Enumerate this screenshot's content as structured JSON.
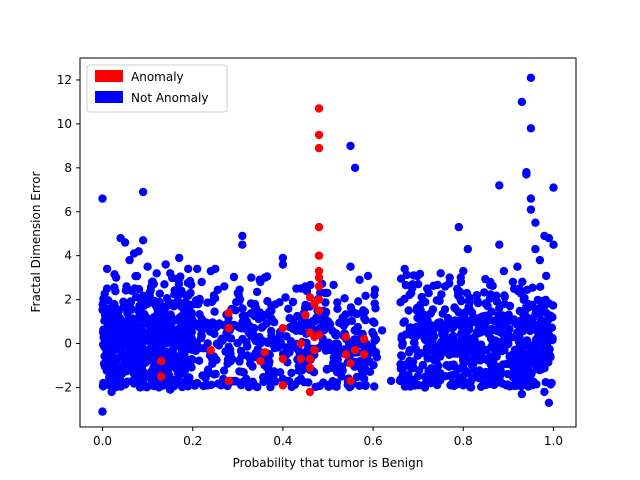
{
  "chart_data": {
    "type": "scatter",
    "title": "",
    "xlabel": "Probability that tumor is Benign",
    "ylabel": "Fractal Dimension Error",
    "xlim": [
      -0.05,
      1.05
    ],
    "ylim": [
      -3.8,
      13.0
    ],
    "x_ticks": [
      "0.0",
      "0.2",
      "0.4",
      "0.6",
      "0.8",
      "1.0"
    ],
    "x_tick_values": [
      0.0,
      0.2,
      0.4,
      0.6,
      0.8,
      1.0
    ],
    "y_ticks": [
      "−2",
      "0",
      "2",
      "4",
      "6",
      "8",
      "10",
      "12"
    ],
    "y_tick_values": [
      -2,
      0,
      2,
      4,
      6,
      8,
      10,
      12
    ],
    "grid": false,
    "legend_position": "top-left",
    "series": [
      {
        "name": "Not Anomaly",
        "color": "#0000ff",
        "points": [
          [
            0.0,
            6.6
          ],
          [
            0.0,
            -3.1
          ],
          [
            0.01,
            3.4
          ],
          [
            0.01,
            2.5
          ],
          [
            0.02,
            -2.2
          ],
          [
            0.03,
            3.0
          ],
          [
            0.04,
            4.8
          ],
          [
            0.05,
            4.6
          ],
          [
            0.06,
            3.8
          ],
          [
            0.07,
            4.1
          ],
          [
            0.08,
            4.2
          ],
          [
            0.09,
            6.9
          ],
          [
            0.09,
            4.7
          ],
          [
            0.1,
            3.5
          ],
          [
            0.11,
            2.8
          ],
          [
            0.12,
            3.2
          ],
          [
            0.14,
            3.6
          ],
          [
            0.15,
            3.2
          ],
          [
            0.17,
            3.9
          ],
          [
            0.19,
            3.4
          ],
          [
            0.21,
            3.4
          ],
          [
            0.22,
            2.8
          ],
          [
            0.24,
            3.3
          ],
          [
            0.25,
            3.4
          ],
          [
            0.27,
            2.6
          ],
          [
            0.3,
            2.3
          ],
          [
            0.31,
            4.9
          ],
          [
            0.31,
            4.5
          ],
          [
            0.33,
            3.0
          ],
          [
            0.35,
            2.8
          ],
          [
            0.36,
            3.0
          ],
          [
            0.4,
            3.9
          ],
          [
            0.4,
            3.6
          ],
          [
            0.43,
            2.5
          ],
          [
            0.45,
            2.6
          ],
          [
            0.55,
            9.0
          ],
          [
            0.55,
            3.5
          ],
          [
            0.56,
            8.0
          ],
          [
            0.57,
            2.9
          ],
          [
            0.6,
            1.0
          ],
          [
            0.62,
            0.6
          ],
          [
            0.64,
            -1.7
          ],
          [
            0.67,
            3.4
          ],
          [
            0.69,
            3.1
          ],
          [
            0.7,
            2.7
          ],
          [
            0.72,
            2.5
          ],
          [
            0.75,
            3.2
          ],
          [
            0.77,
            3.0
          ],
          [
            0.79,
            5.3
          ],
          [
            0.8,
            3.3
          ],
          [
            0.81,
            4.3
          ],
          [
            0.8,
            -1.9
          ],
          [
            0.83,
            2.2
          ],
          [
            0.86,
            2.8
          ],
          [
            0.88,
            7.2
          ],
          [
            0.88,
            4.5
          ],
          [
            0.89,
            3.3
          ],
          [
            0.91,
            2.8
          ],
          [
            0.92,
            3.5
          ],
          [
            0.93,
            11.0
          ],
          [
            0.94,
            7.8
          ],
          [
            0.94,
            7.7
          ],
          [
            0.95,
            12.1
          ],
          [
            0.95,
            9.8
          ],
          [
            0.95,
            6.6
          ],
          [
            0.95,
            6.1
          ],
          [
            0.96,
            5.5
          ],
          [
            0.96,
            4.3
          ],
          [
            0.97,
            3.8
          ],
          [
            0.98,
            4.9
          ],
          [
            0.99,
            4.8
          ],
          [
            1.0,
            7.1
          ],
          [
            1.0,
            4.5
          ],
          [
            0.93,
            -2.3
          ],
          [
            0.98,
            -2.2
          ],
          [
            0.99,
            -2.7
          ],
          [
            0.02,
            -1.8
          ],
          [
            0.15,
            -2.1
          ],
          [
            0.21,
            -1.8
          ],
          [
            0.33,
            -1.8
          ],
          [
            0.44,
            -1.6
          ],
          [
            0.46,
            -1.2
          ],
          [
            0.53,
            -1.5
          ],
          [
            0.58,
            -1.6
          ],
          [
            0.66,
            -1.7
          ],
          [
            0.73,
            -1.5
          ],
          [
            0.79,
            -1.7
          ],
          [
            0.85,
            -1.3
          ]
        ]
      },
      {
        "name": "Anomaly",
        "color": "#ff0000",
        "points": [
          [
            0.48,
            10.7
          ],
          [
            0.48,
            9.5
          ],
          [
            0.48,
            8.9
          ],
          [
            0.48,
            5.3
          ],
          [
            0.48,
            4.0
          ],
          [
            0.48,
            3.3
          ],
          [
            0.48,
            3.0
          ],
          [
            0.48,
            2.6
          ],
          [
            0.48,
            2.0
          ],
          [
            0.48,
            1.5
          ],
          [
            0.47,
            1.8
          ],
          [
            0.47,
            0.3
          ],
          [
            0.47,
            -0.3
          ],
          [
            0.46,
            2.1
          ],
          [
            0.46,
            0.5
          ],
          [
            0.46,
            -0.7
          ],
          [
            0.46,
            -1.1
          ],
          [
            0.46,
            -2.2
          ],
          [
            0.45,
            1.3
          ],
          [
            0.44,
            0.0
          ],
          [
            0.44,
            -0.7
          ],
          [
            0.4,
            0.7
          ],
          [
            0.4,
            -0.7
          ],
          [
            0.4,
            -1.9
          ],
          [
            0.36,
            -0.4
          ],
          [
            0.35,
            -0.8
          ],
          [
            0.28,
            1.4
          ],
          [
            0.28,
            0.7
          ],
          [
            0.28,
            -1.7
          ],
          [
            0.24,
            -0.3
          ],
          [
            0.13,
            -0.8
          ],
          [
            0.13,
            -1.5
          ],
          [
            0.54,
            0.3
          ],
          [
            0.54,
            -0.5
          ],
          [
            0.55,
            -0.9
          ],
          [
            0.55,
            -1.7
          ],
          [
            0.56,
            -0.3
          ],
          [
            0.58,
            0.2
          ],
          [
            0.58,
            -0.5
          ],
          [
            0.48,
            0.4
          ]
        ]
      }
    ]
  },
  "legend": [
    {
      "label": "Anomaly",
      "color": "#ff0000"
    },
    {
      "label": "Not Anomaly",
      "color": "#0000ff"
    }
  ]
}
